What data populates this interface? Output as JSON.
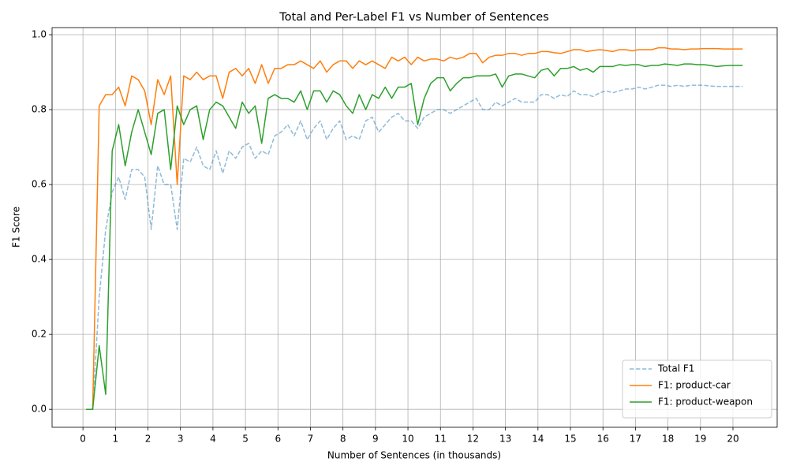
{
  "chart_data": {
    "type": "line",
    "title": "Total and Per-Label F1 vs Number of Sentences",
    "xlabel": "Number of Sentences (in thousands)",
    "ylabel": "F1 Score",
    "x": [
      0.1,
      0.3,
      0.5,
      0.7,
      0.9,
      1.1,
      1.3,
      1.5,
      1.7,
      1.9,
      2.1,
      2.3,
      2.5,
      2.7,
      2.9,
      3.1,
      3.3,
      3.5,
      3.7,
      3.9,
      4.1,
      4.3,
      4.5,
      4.7,
      4.9,
      5.1,
      5.3,
      5.5,
      5.7,
      5.9,
      6.1,
      6.3,
      6.5,
      6.7,
      6.9,
      7.1,
      7.3,
      7.5,
      7.7,
      7.9,
      8.1,
      8.3,
      8.5,
      8.7,
      8.9,
      9.1,
      9.3,
      9.5,
      9.7,
      9.9,
      10.1,
      10.3,
      10.5,
      10.7,
      10.9,
      11.1,
      11.3,
      11.5,
      11.7,
      11.9,
      12.1,
      12.3,
      12.5,
      12.7,
      12.9,
      13.1,
      13.3,
      13.5,
      13.7,
      13.9,
      14.1,
      14.3,
      14.5,
      14.7,
      14.9,
      15.1,
      15.3,
      15.5,
      15.7,
      15.9,
      16.1,
      16.3,
      16.5,
      16.7,
      16.9,
      17.1,
      17.3,
      17.5,
      17.7,
      17.9,
      18.1,
      18.3,
      18.5,
      18.7,
      18.9,
      19.1,
      19.3,
      19.5,
      19.7,
      19.9,
      20.1,
      20.3
    ],
    "series": [
      {
        "name": "Total F1",
        "color": "#1f77b4",
        "alpha": 0.5,
        "linestyle": "dashed",
        "values": [
          0,
          0,
          0.3,
          0.48,
          0.58,
          0.62,
          0.56,
          0.64,
          0.64,
          0.62,
          0.48,
          0.65,
          0.6,
          0.6,
          0.48,
          0.67,
          0.66,
          0.7,
          0.65,
          0.64,
          0.69,
          0.63,
          0.69,
          0.67,
          0.7,
          0.71,
          0.67,
          0.69,
          0.68,
          0.73,
          0.74,
          0.76,
          0.73,
          0.77,
          0.72,
          0.75,
          0.77,
          0.72,
          0.75,
          0.77,
          0.72,
          0.73,
          0.72,
          0.77,
          0.78,
          0.74,
          0.76,
          0.78,
          0.79,
          0.77,
          0.77,
          0.75,
          0.78,
          0.79,
          0.8,
          0.8,
          0.79,
          0.8,
          0.81,
          0.82,
          0.83,
          0.8,
          0.8,
          0.82,
          0.81,
          0.82,
          0.83,
          0.82,
          0.82,
          0.82,
          0.84,
          0.84,
          0.83,
          0.84,
          0.835,
          0.85,
          0.84,
          0.84,
          0.835,
          0.845,
          0.85,
          0.845,
          0.85,
          0.855,
          0.855,
          0.86,
          0.855,
          0.86,
          0.865,
          0.865,
          0.862,
          0.865,
          0.862,
          0.865,
          0.865,
          0.865,
          0.863,
          0.862,
          0.862,
          0.862,
          0.862,
          0.862
        ]
      },
      {
        "name": "F1: product-car",
        "color": "#ff7f0e",
        "alpha": 1,
        "linestyle": "solid",
        "values": [
          0,
          0,
          0.81,
          0.84,
          0.84,
          0.86,
          0.81,
          0.89,
          0.88,
          0.85,
          0.76,
          0.88,
          0.84,
          0.89,
          0.6,
          0.89,
          0.88,
          0.9,
          0.88,
          0.89,
          0.89,
          0.83,
          0.9,
          0.91,
          0.89,
          0.91,
          0.87,
          0.92,
          0.87,
          0.91,
          0.91,
          0.92,
          0.92,
          0.93,
          0.92,
          0.91,
          0.93,
          0.9,
          0.92,
          0.93,
          0.93,
          0.91,
          0.93,
          0.92,
          0.93,
          0.92,
          0.91,
          0.94,
          0.93,
          0.94,
          0.92,
          0.94,
          0.93,
          0.935,
          0.935,
          0.93,
          0.94,
          0.935,
          0.94,
          0.95,
          0.95,
          0.925,
          0.94,
          0.945,
          0.945,
          0.95,
          0.95,
          0.945,
          0.95,
          0.95,
          0.955,
          0.955,
          0.952,
          0.95,
          0.955,
          0.96,
          0.96,
          0.955,
          0.958,
          0.96,
          0.958,
          0.955,
          0.96,
          0.96,
          0.957,
          0.96,
          0.96,
          0.96,
          0.965,
          0.965,
          0.962,
          0.962,
          0.96,
          0.962,
          0.962,
          0.963,
          0.963,
          0.963,
          0.962,
          0.962,
          0.962,
          0.962
        ]
      },
      {
        "name": "F1: product-weapon",
        "color": "#2ca02c",
        "alpha": 1,
        "linestyle": "solid",
        "values": [
          0,
          0,
          0.17,
          0.04,
          0.69,
          0.76,
          0.65,
          0.74,
          0.8,
          0.74,
          0.68,
          0.79,
          0.8,
          0.64,
          0.81,
          0.76,
          0.8,
          0.81,
          0.72,
          0.8,
          0.82,
          0.81,
          0.78,
          0.75,
          0.82,
          0.79,
          0.81,
          0.71,
          0.83,
          0.84,
          0.83,
          0.83,
          0.82,
          0.85,
          0.8,
          0.85,
          0.85,
          0.82,
          0.85,
          0.84,
          0.81,
          0.79,
          0.84,
          0.8,
          0.84,
          0.83,
          0.86,
          0.83,
          0.86,
          0.86,
          0.87,
          0.76,
          0.83,
          0.87,
          0.885,
          0.885,
          0.85,
          0.87,
          0.885,
          0.885,
          0.89,
          0.89,
          0.89,
          0.895,
          0.86,
          0.89,
          0.895,
          0.895,
          0.89,
          0.885,
          0.905,
          0.91,
          0.89,
          0.91,
          0.91,
          0.915,
          0.905,
          0.91,
          0.9,
          0.915,
          0.915,
          0.915,
          0.92,
          0.918,
          0.92,
          0.92,
          0.915,
          0.918,
          0.918,
          0.922,
          0.92,
          0.918,
          0.922,
          0.922,
          0.92,
          0.92,
          0.918,
          0.915,
          0.917,
          0.918,
          0.918,
          0.918
        ]
      }
    ],
    "xlim": [
      -0.95,
      21.36
    ],
    "ylim": [
      -0.048,
      1.019
    ],
    "xticks": [
      0,
      1,
      2,
      3,
      4,
      5,
      6,
      7,
      8,
      9,
      10,
      11,
      12,
      13,
      14,
      15,
      16,
      17,
      18,
      19,
      20
    ],
    "yticks": [
      {
        "value": 0,
        "label": "0.0"
      },
      0.2,
      0.4,
      0.6,
      0.8,
      {
        "value": 1,
        "label": "1.0"
      }
    ],
    "grid": true,
    "legend": "lower right"
  }
}
